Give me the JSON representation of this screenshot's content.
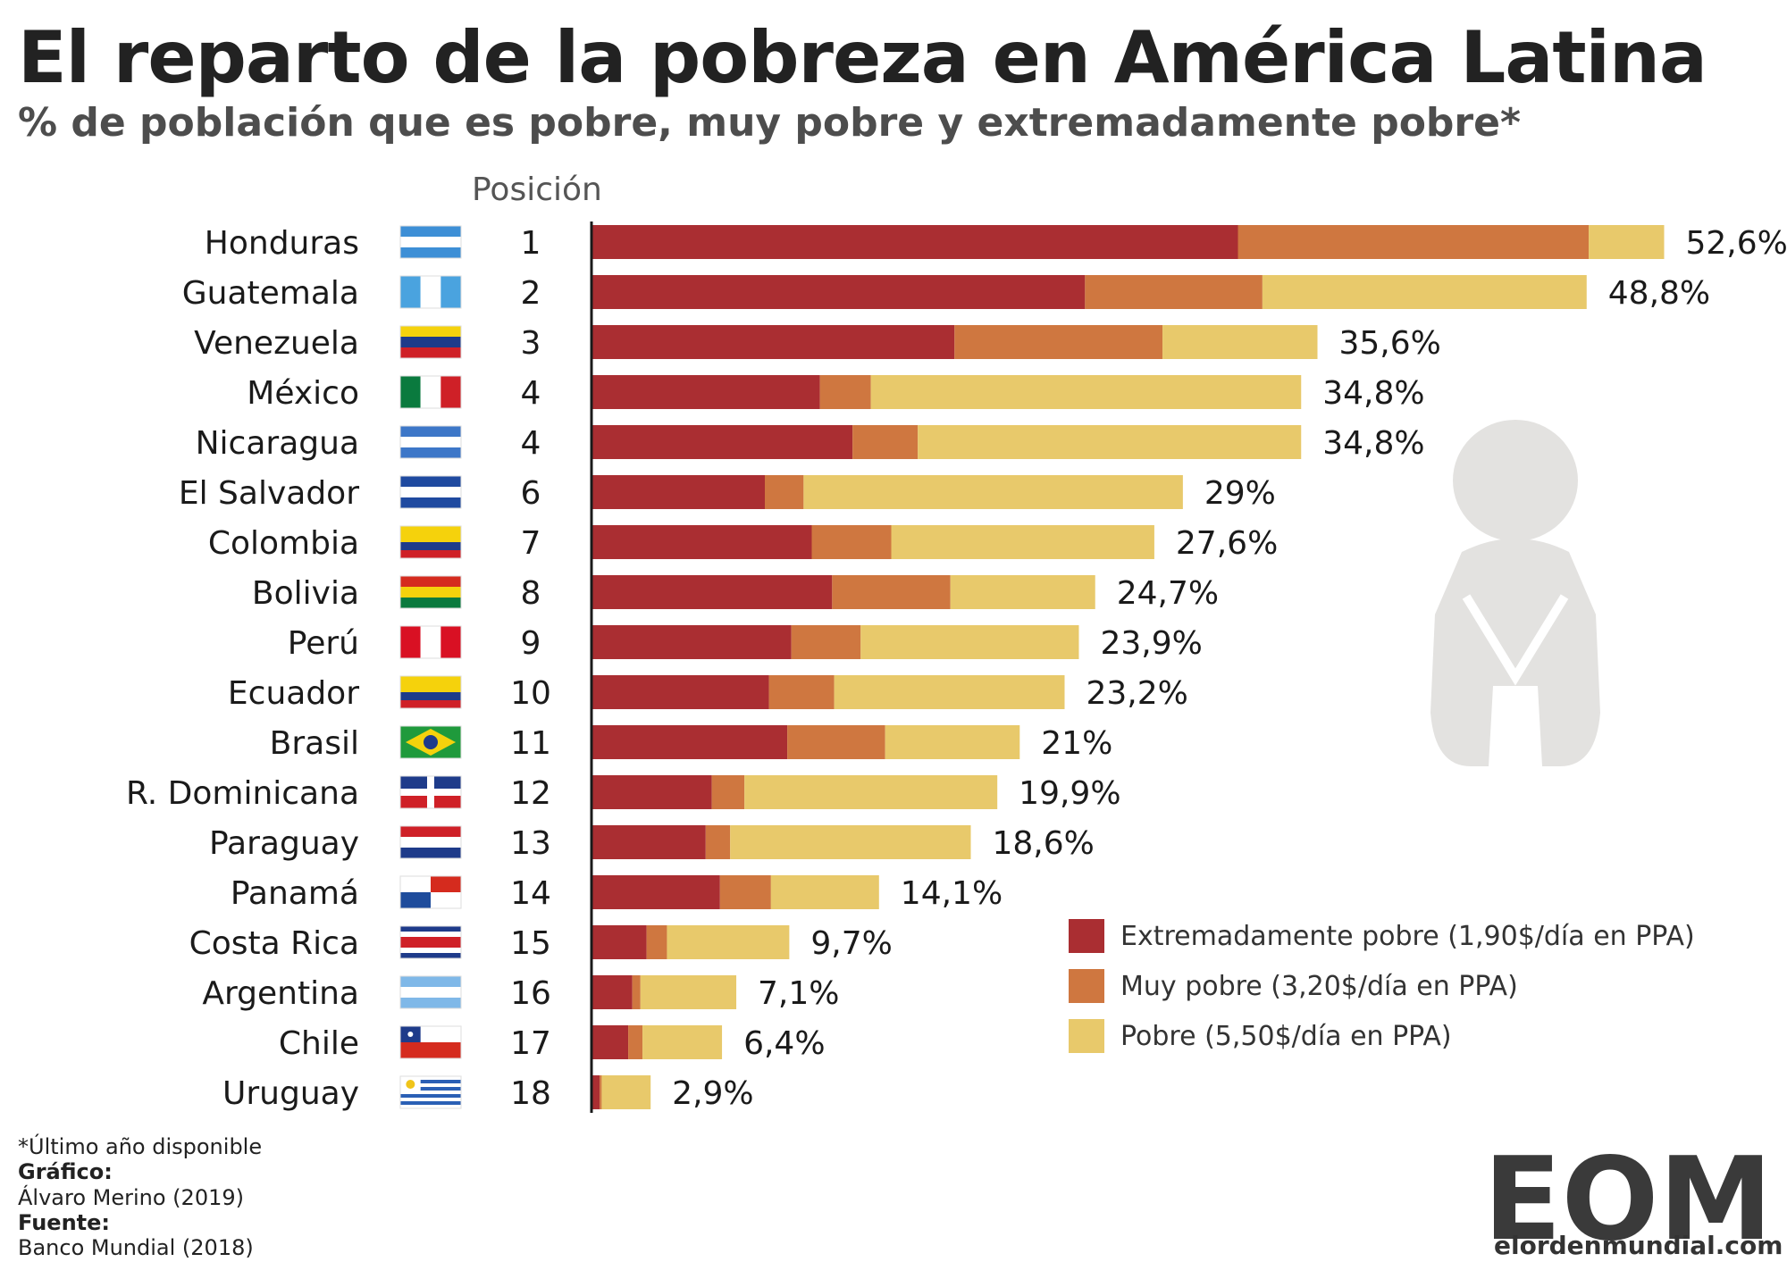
{
  "header": {
    "title": "El reparto de la pobreza en América Latina",
    "subtitle": "% de población que es pobre, muy pobre y extremadamente pobre*",
    "position_header": "Posición"
  },
  "footer": {
    "note": "*Último año disponible",
    "graph_label": "Gráfico:",
    "graph_author": "Álvaro Merino (2019)",
    "source_label": "Fuente:",
    "source_value": "Banco Mundial (2018)"
  },
  "logo": {
    "text": "EOM",
    "url": "elordenmundial.com"
  },
  "colors": {
    "extreme": "#aa2e32",
    "very": "#cf7740",
    "poor": "#e8c96b",
    "figure": "#e3e2e0"
  },
  "legend": [
    {
      "label": "Extremadamente pobre (1,90$/día en PPA)",
      "color": "#aa2e32"
    },
    {
      "label": "Muy pobre (3,20$/día en PPA)",
      "color": "#cf7740"
    },
    {
      "label": "Pobre (5,50$/día en PPA)",
      "color": "#e8c96b"
    }
  ],
  "chart_data": {
    "type": "bar",
    "orientation": "horizontal",
    "stacked": true,
    "title": "El reparto de la pobreza en América Latina",
    "subtitle": "% de población que es pobre, muy pobre y extremadamente pobre*",
    "xlim": [
      0,
      53
    ],
    "grid": false,
    "legend_position": "bottom-right",
    "categories": [
      "Honduras",
      "Guatemala",
      "Venezuela",
      "México",
      "Nicaragua",
      "El Salvador",
      "Colombia",
      "Bolivia",
      "Perú",
      "Ecuador",
      "Brasil",
      "R. Dominicana",
      "Paraguay",
      "Panamá",
      "Costa Rica",
      "Argentina",
      "Chile",
      "Uruguay"
    ],
    "positions": [
      "1",
      "2",
      "3",
      "4",
      "4",
      "6",
      "7",
      "8",
      "9",
      "10",
      "11",
      "12",
      "13",
      "14",
      "15",
      "16",
      "17",
      "18"
    ],
    "totals": [
      52.6,
      48.8,
      35.6,
      34.8,
      34.8,
      29,
      27.6,
      24.7,
      23.9,
      23.2,
      21,
      19.9,
      18.6,
      14.1,
      9.7,
      7.1,
      6.4,
      2.9
    ],
    "total_labels": [
      "52,6%",
      "48,8%",
      "35,6%",
      "34,8%",
      "34,8%",
      "29%",
      "27,6%",
      "24,7%",
      "23,9%",
      "23,2%",
      "21%",
      "19,9%",
      "18,6%",
      "14,1%",
      "9,7%",
      "7,1%",
      "6,4%",
      "2,9%"
    ],
    "series": [
      {
        "name": "Extremadamente pobre (1,90$/día en PPA)",
        "values": [
          31.7,
          24.2,
          17.8,
          11.2,
          12.8,
          8.5,
          10.8,
          11.8,
          9.8,
          8.7,
          9.6,
          5.9,
          5.6,
          6.3,
          2.7,
          2.0,
          1.8,
          0.4
        ]
      },
      {
        "name": "Muy pobre (3,20$/día en PPA)",
        "values": [
          17.2,
          8.7,
          10.2,
          2.5,
          3.2,
          1.9,
          3.9,
          5.8,
          3.4,
          3.2,
          4.8,
          1.6,
          1.2,
          2.5,
          1.0,
          0.4,
          0.7,
          0.1
        ]
      },
      {
        "name": "Pobre (5,50$/día en PPA)",
        "values": [
          3.7,
          15.9,
          7.6,
          21.1,
          18.8,
          18.6,
          12.9,
          7.1,
          10.7,
          11.3,
          6.6,
          12.4,
          11.8,
          5.3,
          6.0,
          4.7,
          3.9,
          2.4
        ]
      }
    ]
  }
}
